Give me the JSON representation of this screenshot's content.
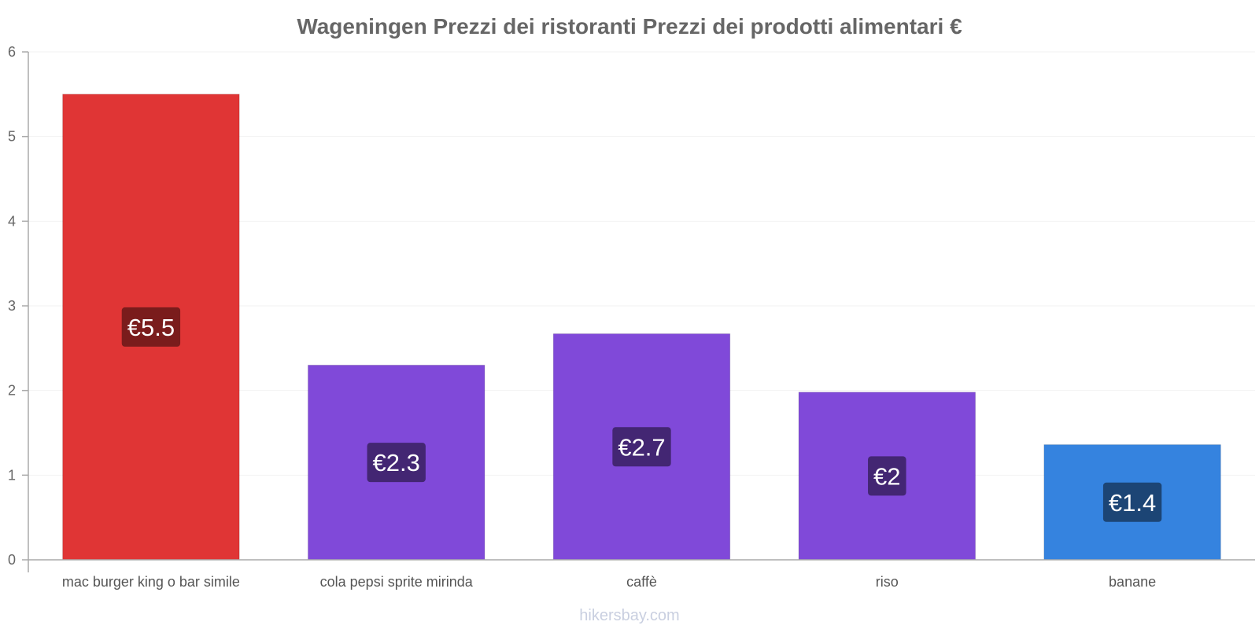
{
  "chart_data": {
    "type": "bar",
    "title": "Wageningen Prezzi dei ristoranti Prezzi dei prodotti alimentari €",
    "categories": [
      "mac burger king o bar simile",
      "cola pepsi sprite mirinda",
      "caffè",
      "riso",
      "banane"
    ],
    "values": [
      5.5,
      2.3,
      2.67,
      1.98,
      1.36
    ],
    "value_labels": [
      "€5.5",
      "€2.3",
      "€2.7",
      "€2",
      "€1.4"
    ],
    "colors": [
      "#e03535",
      "#8049d9",
      "#8049d9",
      "#8049d9",
      "#3583df"
    ],
    "label_bg_colors": [
      "#7a1c1c",
      "#432673",
      "#432673",
      "#432673",
      "#1c4575"
    ],
    "y_ticks": [
      "0",
      "1",
      "2",
      "3",
      "4",
      "5",
      "6"
    ],
    "ylim": [
      0,
      6
    ],
    "xlabel": "",
    "ylabel": "",
    "grid": true
  },
  "watermark": "hikersbay.com"
}
